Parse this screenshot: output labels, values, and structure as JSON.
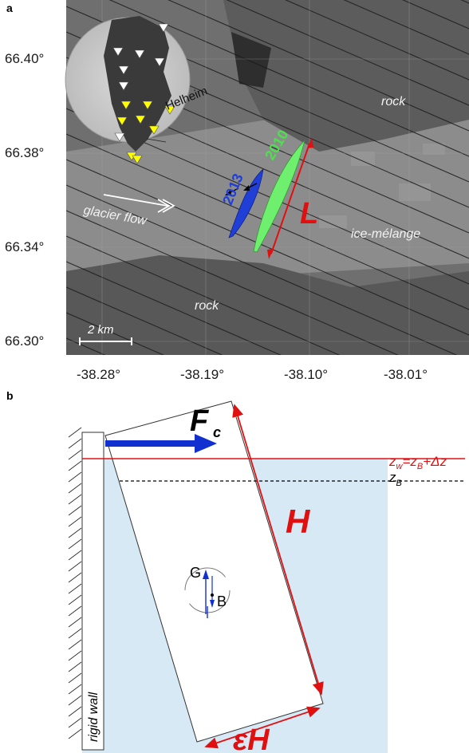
{
  "panel_a": {
    "letter": "a",
    "lat_labels": [
      "66.40°",
      "66.38°",
      "66.34°",
      "66.30°"
    ],
    "lon_labels": [
      "-38.28°",
      "-38.19°",
      "-38.10°",
      "-38.01°"
    ],
    "inset_label": "Helheim",
    "rock_upper": "rock",
    "rock_lower": "rock",
    "ice_melange": "ice-mélange",
    "glacier_flow": "glacier flow",
    "scale": "2 km",
    "year_2013": "2013",
    "year_2010": "2010",
    "length_label": "L",
    "colors": {
      "year_2013": "#1f3fd6",
      "year_2010": "#6ef06e",
      "length": "#e01010"
    }
  },
  "panel_b": {
    "letter": "b",
    "force_label": "F",
    "force_sub": "c",
    "zw_label": "z",
    "zw_sub": "w",
    "zw_eq": "=z",
    "zw_sub2": "B",
    "zw_tail": "+Δz",
    "zb_label": "z",
    "zb_sub": "B",
    "height_label": "H",
    "width_label": "εH",
    "g_label": "G",
    "b_label": "B",
    "wall_label": "rigid wall",
    "colors": {
      "water": "#d6e9f5",
      "force": "#1030d0",
      "annot": "#e01010"
    }
  }
}
